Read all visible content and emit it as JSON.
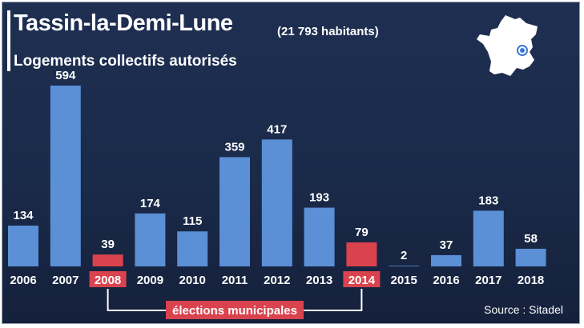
{
  "header": {
    "title": "Tassin-la-Demi-Lune",
    "population": "(21 793 habitants)",
    "subtitle": "Logements collectifs autorisés"
  },
  "annotation": {
    "label": "élections municipales"
  },
  "source": "Source : Sitadel",
  "colors": {
    "bar": "#5b8fd6",
    "highlight": "#d9434e",
    "background": "#1c2c4d",
    "text": "#ffffff"
  },
  "chart_data": {
    "type": "bar",
    "title": "Logements collectifs autorisés",
    "categories": [
      "2006",
      "2007",
      "2008",
      "2009",
      "2010",
      "2011",
      "2012",
      "2013",
      "2014",
      "2015",
      "2016",
      "2017",
      "2018"
    ],
    "values": [
      134,
      594,
      39,
      174,
      115,
      359,
      417,
      193,
      79,
      2,
      37,
      183,
      58
    ],
    "highlighted_categories": [
      "2008",
      "2014"
    ],
    "ylim": [
      0,
      594
    ],
    "grid": false,
    "legend": "none"
  }
}
